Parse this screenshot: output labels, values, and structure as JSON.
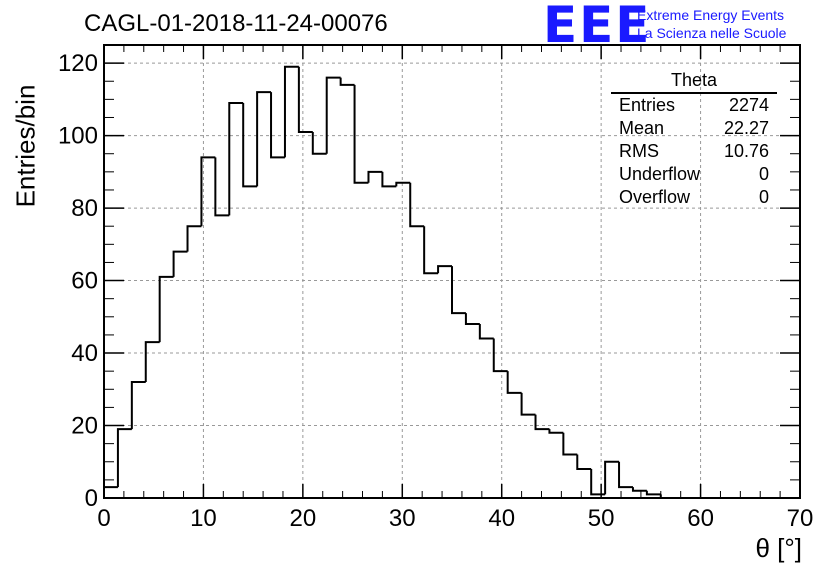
{
  "title": "CAGL-01-2018-11-24-00076",
  "logo": {
    "letters": "EEE",
    "line1": "Extreme Energy Events",
    "line2": "La Scienza nelle Scuole",
    "color": "#1a1aff"
  },
  "stats": {
    "title": "Theta",
    "rows": [
      {
        "label": "Entries",
        "value": "2274"
      },
      {
        "label": "Mean",
        "value": "22.27"
      },
      {
        "label": "RMS",
        "value": "10.76"
      },
      {
        "label": "Underflow",
        "value": "0"
      },
      {
        "label": "Overflow",
        "value": "0"
      }
    ]
  },
  "chart_data": {
    "type": "bar",
    "subtype": "step-histogram",
    "xlabel": "θ [°]",
    "ylabel": "Entries/bin",
    "xlim": [
      0,
      70
    ],
    "ylim": [
      0,
      125
    ],
    "xticks": [
      0,
      10,
      20,
      30,
      40,
      50,
      60,
      70
    ],
    "yticks": [
      0,
      20,
      40,
      60,
      80,
      100,
      120
    ],
    "grid": true,
    "bin_width": 1.4,
    "bin_edges_start": 0,
    "values": [
      3,
      19,
      32,
      43,
      61,
      68,
      75,
      94,
      78,
      109,
      86,
      112,
      94,
      119,
      101,
      95,
      116,
      114,
      87,
      90,
      86,
      87,
      75,
      62,
      64,
      51,
      48,
      44,
      35,
      29,
      23,
      19,
      18,
      12,
      8,
      1,
      10,
      3,
      2,
      1,
      0,
      0,
      0,
      0,
      0,
      0,
      0,
      0,
      0,
      0
    ],
    "line_color": "#000000"
  }
}
